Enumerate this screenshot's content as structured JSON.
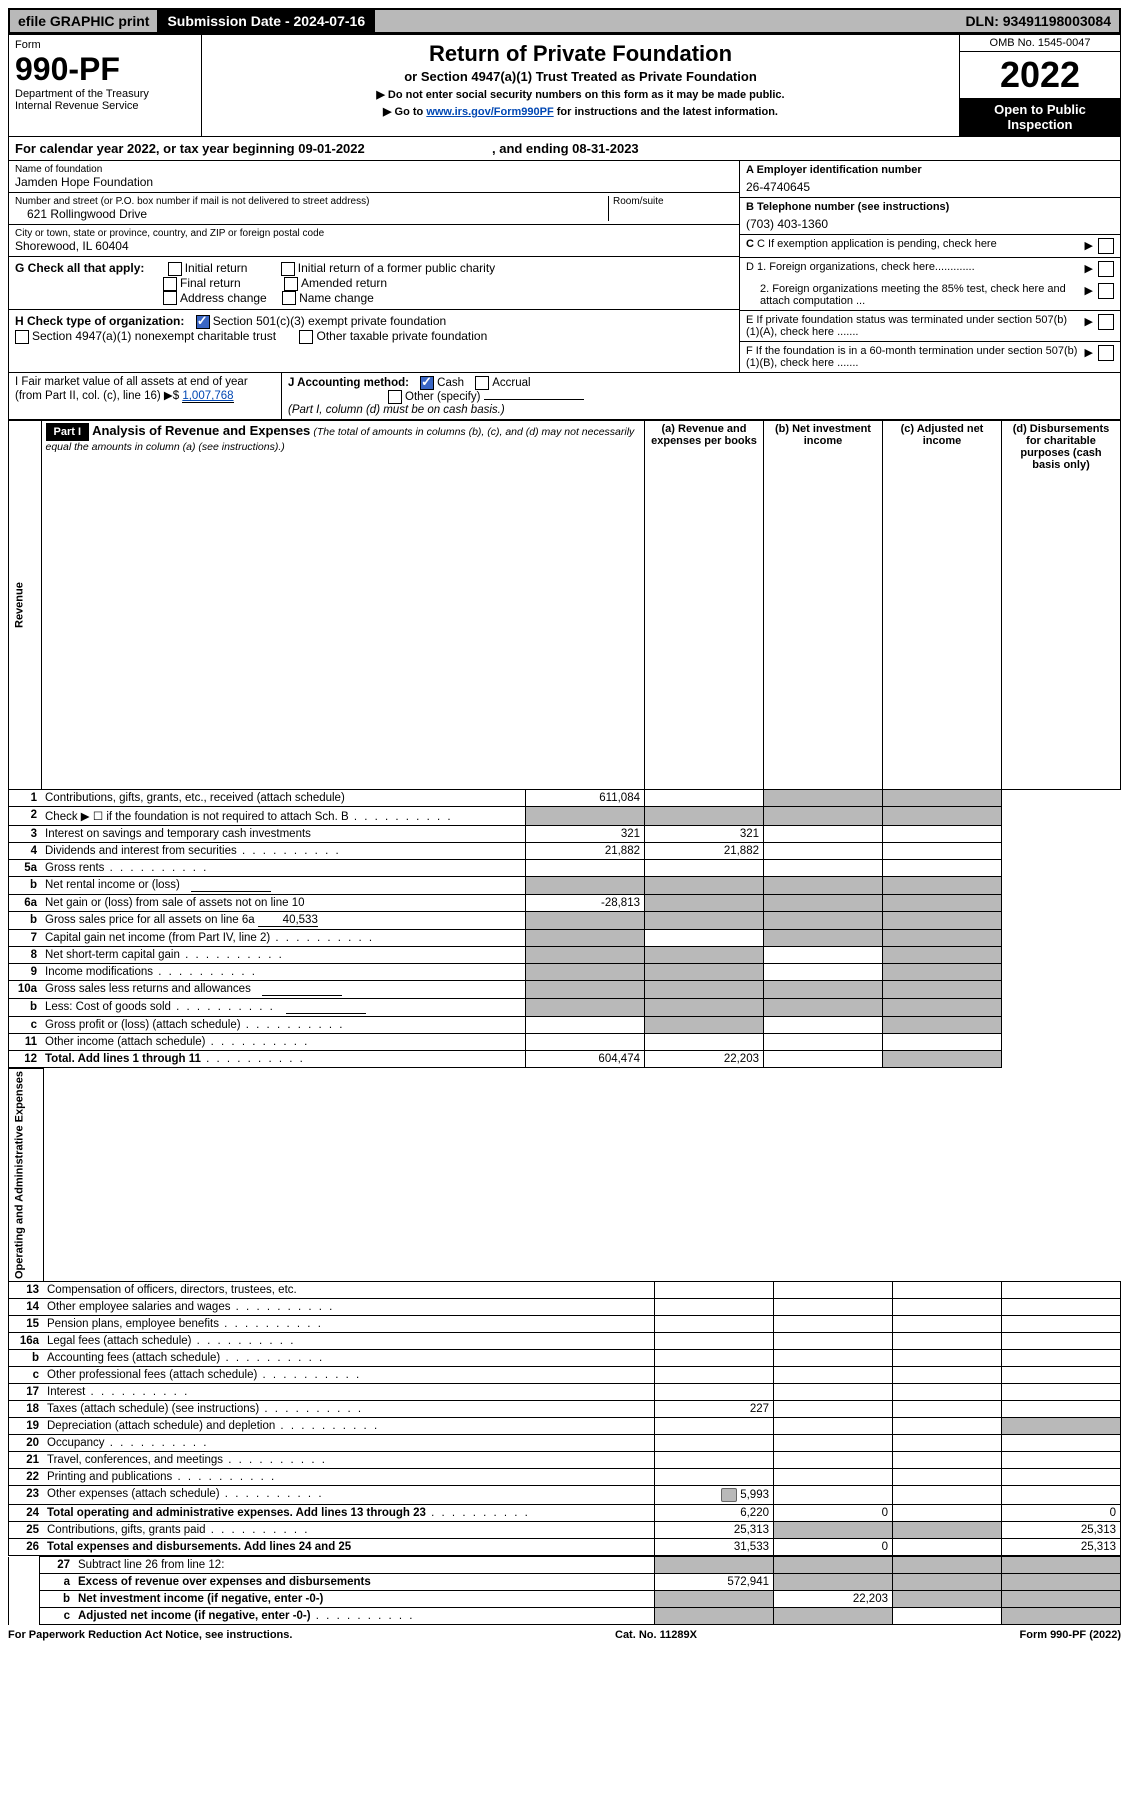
{
  "topbar": {
    "efile": "efile GRAPHIC print",
    "submission": "Submission Date - 2024-07-16",
    "dln": "DLN: 93491198003084"
  },
  "header": {
    "form_label": "Form",
    "form_no": "990-PF",
    "dept": "Department of the Treasury",
    "irs": "Internal Revenue Service",
    "title": "Return of Private Foundation",
    "subtitle": "or Section 4947(a)(1) Trust Treated as Private Foundation",
    "note1": "▶ Do not enter social security numbers on this form as it may be made public.",
    "note2_pre": "▶ Go to ",
    "note2_link": "www.irs.gov/Form990PF",
    "note2_post": " for instructions and the latest information.",
    "omb": "OMB No. 1545-0047",
    "year": "2022",
    "open": "Open to Public Inspection"
  },
  "calyear": {
    "text_pre": "For calendar year 2022, or tax year beginning ",
    "begin": "09-01-2022",
    "mid": " , and ending ",
    "end": "08-31-2023"
  },
  "info": {
    "name_lbl": "Name of foundation",
    "name": "Jamden Hope Foundation",
    "addr_lbl": "Number and street (or P.O. box number if mail is not delivered to street address)",
    "addr": "621 Rollingwood Drive",
    "room_lbl": "Room/suite",
    "city_lbl": "City or town, state or province, country, and ZIP or foreign postal code",
    "city": "Shorewood, IL  60404",
    "a_lbl": "A Employer identification number",
    "a_val": "26-4740645",
    "b_lbl": "B Telephone number (see instructions)",
    "b_val": "(703) 403-1360",
    "c_lbl": "C If exemption application is pending, check here",
    "d1": "D 1. Foreign organizations, check here.............",
    "d2": "2. Foreign organizations meeting the 85% test, check here and attach computation ...",
    "e_lbl": "E  If private foundation status was terminated under section 507(b)(1)(A), check here .......",
    "f_lbl": "F  If the foundation is in a 60-month termination under section 507(b)(1)(B), check here ......."
  },
  "g": {
    "label": "G Check all that apply:",
    "opts": [
      "Initial return",
      "Final return",
      "Address change",
      "Initial return of a former public charity",
      "Amended return",
      "Name change"
    ]
  },
  "h": {
    "label": "H Check type of organization:",
    "o1": "Section 501(c)(3) exempt private foundation",
    "o2": "Section 4947(a)(1) nonexempt charitable trust",
    "o3": "Other taxable private foundation"
  },
  "i": {
    "label": "I Fair market value of all assets at end of year (from Part II, col. (c), line 16) ▶$ ",
    "val": "1,007,768"
  },
  "j": {
    "label": "J Accounting method:",
    "cash": "Cash",
    "accrual": "Accrual",
    "other": "Other (specify)",
    "note": "(Part I, column (d) must be on cash basis.)"
  },
  "part1": {
    "hdr": "Part I",
    "title": "Analysis of Revenue and Expenses",
    "title_note": " (The total of amounts in columns (b), (c), and (d) may not necessarily equal the amounts in column (a) (see instructions).)",
    "cols": {
      "a": "(a) Revenue and expenses per books",
      "b": "(b) Net investment income",
      "c": "(c) Adjusted net income",
      "d": "(d) Disbursements for charitable purposes (cash basis only)"
    }
  },
  "side": {
    "rev": "Revenue",
    "exp": "Operating and Administrative Expenses"
  },
  "rows": [
    {
      "n": "1",
      "d": "Contributions, gifts, grants, etc., received (attach schedule)",
      "a": "611,084",
      "shb": false,
      "shc": true,
      "shd": true
    },
    {
      "n": "2",
      "d": "Check ▶ ☐ if the foundation is not required to attach Sch. B",
      "dots": true,
      "shA": true,
      "shb": true,
      "shc": true,
      "shd": true
    },
    {
      "n": "3",
      "d": "Interest on savings and temporary cash investments",
      "a": "321",
      "b": "321"
    },
    {
      "n": "4",
      "d": "Dividends and interest from securities",
      "a": "21,882",
      "b": "21,882",
      "dots": true
    },
    {
      "n": "5a",
      "d": "Gross rents",
      "dots": true
    },
    {
      "n": "b",
      "d": "Net rental income or (loss)",
      "inline_box": true,
      "shA": true,
      "shb": true,
      "shc": true,
      "shd": true
    },
    {
      "n": "6a",
      "d": "Net gain or (loss) from sale of assets not on line 10",
      "a": "-28,813",
      "shb": true,
      "shc": true,
      "shd": true
    },
    {
      "n": "b",
      "d": "Gross sales price for all assets on line 6a",
      "inline_val": "40,533",
      "shA": true,
      "shb": true,
      "shc": true,
      "shd": true
    },
    {
      "n": "7",
      "d": "Capital gain net income (from Part IV, line 2)",
      "dots": true,
      "shA": true,
      "shc": true,
      "shd": true
    },
    {
      "n": "8",
      "d": "Net short-term capital gain",
      "dots": true,
      "shA": true,
      "shb": true,
      "shd": true
    },
    {
      "n": "9",
      "d": "Income modifications",
      "dots": true,
      "shA": true,
      "shb": true,
      "shd": true
    },
    {
      "n": "10a",
      "d": "Gross sales less returns and allowances",
      "inline_box": true,
      "shA": true,
      "shb": true,
      "shc": true,
      "shd": true
    },
    {
      "n": "b",
      "d": "Less: Cost of goods sold",
      "dots": true,
      "inline_box": true,
      "shA": true,
      "shb": true,
      "shc": true,
      "shd": true
    },
    {
      "n": "c",
      "d": "Gross profit or (loss) (attach schedule)",
      "dots": true,
      "shb": true,
      "shd": true
    },
    {
      "n": "11",
      "d": "Other income (attach schedule)",
      "dots": true
    },
    {
      "n": "12",
      "d": "Total. Add lines 1 through 11",
      "bold": true,
      "dots": true,
      "a": "604,474",
      "b": "22,203",
      "shd": true
    }
  ],
  "exp_rows": [
    {
      "n": "13",
      "d": "Compensation of officers, directors, trustees, etc."
    },
    {
      "n": "14",
      "d": "Other employee salaries and wages",
      "dots": true
    },
    {
      "n": "15",
      "d": "Pension plans, employee benefits",
      "dots": true
    },
    {
      "n": "16a",
      "d": "Legal fees (attach schedule)",
      "dots": true
    },
    {
      "n": "b",
      "d": "Accounting fees (attach schedule)",
      "dots": true
    },
    {
      "n": "c",
      "d": "Other professional fees (attach schedule)",
      "dots": true
    },
    {
      "n": "17",
      "d": "Interest",
      "dots": true
    },
    {
      "n": "18",
      "d": "Taxes (attach schedule) (see instructions)",
      "dots": true,
      "a": "227"
    },
    {
      "n": "19",
      "d": "Depreciation (attach schedule) and depletion",
      "dots": true,
      "shd": true
    },
    {
      "n": "20",
      "d": "Occupancy",
      "dots": true
    },
    {
      "n": "21",
      "d": "Travel, conferences, and meetings",
      "dots": true
    },
    {
      "n": "22",
      "d": "Printing and publications",
      "dots": true
    },
    {
      "n": "23",
      "d": "Other expenses (attach schedule)",
      "dots": true,
      "a": "5,993",
      "icon": true
    },
    {
      "n": "24",
      "d": "Total operating and administrative expenses. Add lines 13 through 23",
      "bold": true,
      "dots": true,
      "a": "6,220",
      "b": "0",
      "d_v": "0"
    },
    {
      "n": "25",
      "d": "Contributions, gifts, grants paid",
      "dots": true,
      "a": "25,313",
      "shb": true,
      "shc": true,
      "d_v": "25,313"
    },
    {
      "n": "26",
      "d": "Total expenses and disbursements. Add lines 24 and 25",
      "bold": true,
      "a": "31,533",
      "b": "0",
      "d_v": "25,313"
    }
  ],
  "bottom_rows": [
    {
      "n": "27",
      "d": "Subtract line 26 from line 12:",
      "shA": true,
      "shb": true,
      "shc": true,
      "shd": true
    },
    {
      "n": "a",
      "d": "Excess of revenue over expenses and disbursements",
      "bold": true,
      "a": "572,941",
      "shb": true,
      "shc": true,
      "shd": true
    },
    {
      "n": "b",
      "d": "Net investment income (if negative, enter -0-)",
      "bold": true,
      "shA": true,
      "b": "22,203",
      "shc": true,
      "shd": true
    },
    {
      "n": "c",
      "d": "Adjusted net income (if negative, enter -0-)",
      "bold": true,
      "dots": true,
      "shA": true,
      "shb": true,
      "shd": true
    }
  ],
  "footer": {
    "left": "For Paperwork Reduction Act Notice, see instructions.",
    "mid": "Cat. No. 11289X",
    "right": "Form 990-PF (2022)"
  },
  "colors": {
    "shade": "#b9b9b9",
    "link": "#0047b3",
    "check": "#3a66c4"
  }
}
